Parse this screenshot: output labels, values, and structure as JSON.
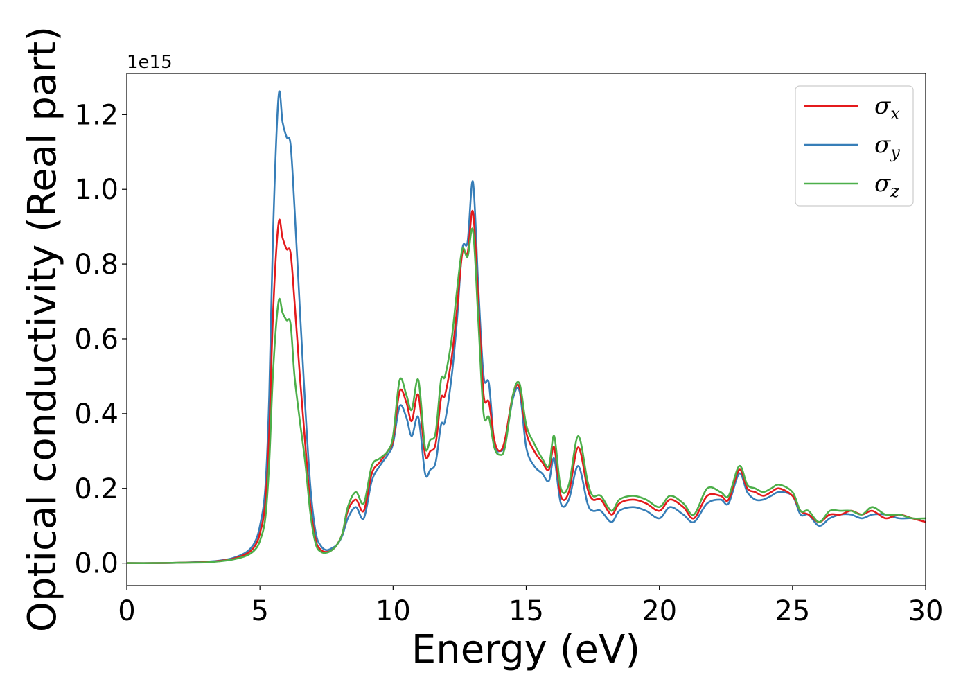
{
  "chart_data": {
    "type": "line",
    "xlabel": "Energy (eV)",
    "ylabel": "Optical conductivity (Real part)",
    "y_offset_label": "1e15",
    "xlim": [
      0,
      30
    ],
    "ylim": [
      -0.06,
      1.31
    ],
    "x_ticks": [
      "0",
      "5",
      "10",
      "15",
      "20",
      "25",
      "30"
    ],
    "y_ticks": [
      "0.0",
      "0.2",
      "0.4",
      "0.6",
      "0.8",
      "1.0",
      "1.2"
    ],
    "grid": false,
    "legend_position": "top-right",
    "x": [
      0,
      1,
      2,
      3,
      3.5,
      4,
      4.5,
      4.8,
      5.0,
      5.2,
      5.35,
      5.5,
      5.7,
      5.85,
      6.0,
      6.15,
      6.3,
      6.5,
      6.7,
      6.9,
      7.1,
      7.3,
      7.5,
      7.7,
      7.9,
      8.1,
      8.3,
      8.6,
      8.9,
      9.2,
      9.5,
      9.8,
      10.0,
      10.25,
      10.5,
      10.7,
      10.95,
      11.2,
      11.4,
      11.6,
      11.8,
      11.95,
      12.2,
      12.4,
      12.6,
      12.8,
      13.0,
      13.2,
      13.4,
      13.6,
      13.8,
      14.0,
      14.2,
      14.5,
      14.75,
      15.0,
      15.3,
      15.6,
      15.85,
      16.05,
      16.3,
      16.6,
      16.95,
      17.3,
      17.5,
      17.8,
      18.2,
      18.5,
      19.0,
      19.5,
      20.0,
      20.4,
      20.9,
      21.3,
      21.8,
      22.3,
      22.6,
      23.0,
      23.3,
      23.6,
      23.9,
      24.2,
      24.5,
      25.0,
      25.3,
      25.6,
      26.0,
      26.4,
      26.8,
      27.2,
      27.6,
      28.0,
      28.5,
      29.0,
      29.5,
      30.0
    ],
    "series": [
      {
        "name": "σx",
        "symbol": "σ",
        "subscript": "x",
        "color": "#e41a1c",
        "values": [
          0,
          0,
          0.001,
          0.003,
          0.006,
          0.012,
          0.025,
          0.045,
          0.08,
          0.16,
          0.35,
          0.68,
          0.91,
          0.87,
          0.84,
          0.83,
          0.7,
          0.5,
          0.32,
          0.15,
          0.06,
          0.035,
          0.03,
          0.035,
          0.05,
          0.08,
          0.14,
          0.17,
          0.14,
          0.24,
          0.27,
          0.3,
          0.33,
          0.46,
          0.43,
          0.38,
          0.45,
          0.29,
          0.3,
          0.32,
          0.44,
          0.45,
          0.55,
          0.68,
          0.83,
          0.83,
          0.94,
          0.7,
          0.45,
          0.43,
          0.33,
          0.3,
          0.33,
          0.45,
          0.47,
          0.35,
          0.3,
          0.27,
          0.25,
          0.31,
          0.18,
          0.19,
          0.31,
          0.2,
          0.17,
          0.17,
          0.13,
          0.16,
          0.17,
          0.16,
          0.14,
          0.17,
          0.15,
          0.12,
          0.18,
          0.18,
          0.17,
          0.25,
          0.2,
          0.19,
          0.18,
          0.19,
          0.2,
          0.18,
          0.14,
          0.13,
          0.11,
          0.13,
          0.13,
          0.14,
          0.13,
          0.14,
          0.12,
          0.13,
          0.12,
          0.11
        ]
      },
      {
        "name": "σy",
        "symbol": "σ",
        "subscript": "y",
        "color": "#377eb8",
        "values": [
          0,
          0,
          0.001,
          0.004,
          0.007,
          0.014,
          0.03,
          0.055,
          0.1,
          0.2,
          0.45,
          0.9,
          1.25,
          1.18,
          1.14,
          1.12,
          0.95,
          0.68,
          0.42,
          0.2,
          0.08,
          0.045,
          0.035,
          0.04,
          0.05,
          0.075,
          0.12,
          0.15,
          0.12,
          0.22,
          0.26,
          0.29,
          0.32,
          0.42,
          0.39,
          0.34,
          0.39,
          0.24,
          0.25,
          0.27,
          0.37,
          0.38,
          0.5,
          0.65,
          0.84,
          0.86,
          1.02,
          0.74,
          0.5,
          0.48,
          0.32,
          0.3,
          0.32,
          0.44,
          0.46,
          0.31,
          0.26,
          0.24,
          0.22,
          0.28,
          0.16,
          0.17,
          0.26,
          0.16,
          0.14,
          0.14,
          0.11,
          0.14,
          0.15,
          0.14,
          0.12,
          0.15,
          0.13,
          0.11,
          0.16,
          0.17,
          0.16,
          0.24,
          0.19,
          0.17,
          0.17,
          0.18,
          0.19,
          0.18,
          0.13,
          0.13,
          0.1,
          0.12,
          0.13,
          0.13,
          0.12,
          0.13,
          0.13,
          0.12,
          0.12,
          0.11
        ]
      },
      {
        "name": "σz",
        "symbol": "σ",
        "subscript": "z",
        "color": "#4daf4a",
        "values": [
          0,
          0,
          0.001,
          0.002,
          0.005,
          0.01,
          0.02,
          0.035,
          0.06,
          0.12,
          0.27,
          0.52,
          0.7,
          0.67,
          0.65,
          0.64,
          0.5,
          0.38,
          0.27,
          0.13,
          0.05,
          0.03,
          0.028,
          0.035,
          0.05,
          0.08,
          0.15,
          0.19,
          0.16,
          0.26,
          0.28,
          0.3,
          0.34,
          0.49,
          0.45,
          0.41,
          0.49,
          0.31,
          0.33,
          0.35,
          0.49,
          0.5,
          0.6,
          0.73,
          0.84,
          0.82,
          0.89,
          0.65,
          0.4,
          0.39,
          0.31,
          0.29,
          0.31,
          0.45,
          0.48,
          0.37,
          0.32,
          0.28,
          0.26,
          0.34,
          0.2,
          0.21,
          0.34,
          0.22,
          0.18,
          0.18,
          0.14,
          0.17,
          0.18,
          0.17,
          0.15,
          0.18,
          0.16,
          0.13,
          0.2,
          0.19,
          0.18,
          0.26,
          0.21,
          0.2,
          0.19,
          0.2,
          0.21,
          0.19,
          0.14,
          0.14,
          0.11,
          0.14,
          0.14,
          0.14,
          0.13,
          0.15,
          0.13,
          0.13,
          0.12,
          0.12
        ]
      }
    ]
  }
}
